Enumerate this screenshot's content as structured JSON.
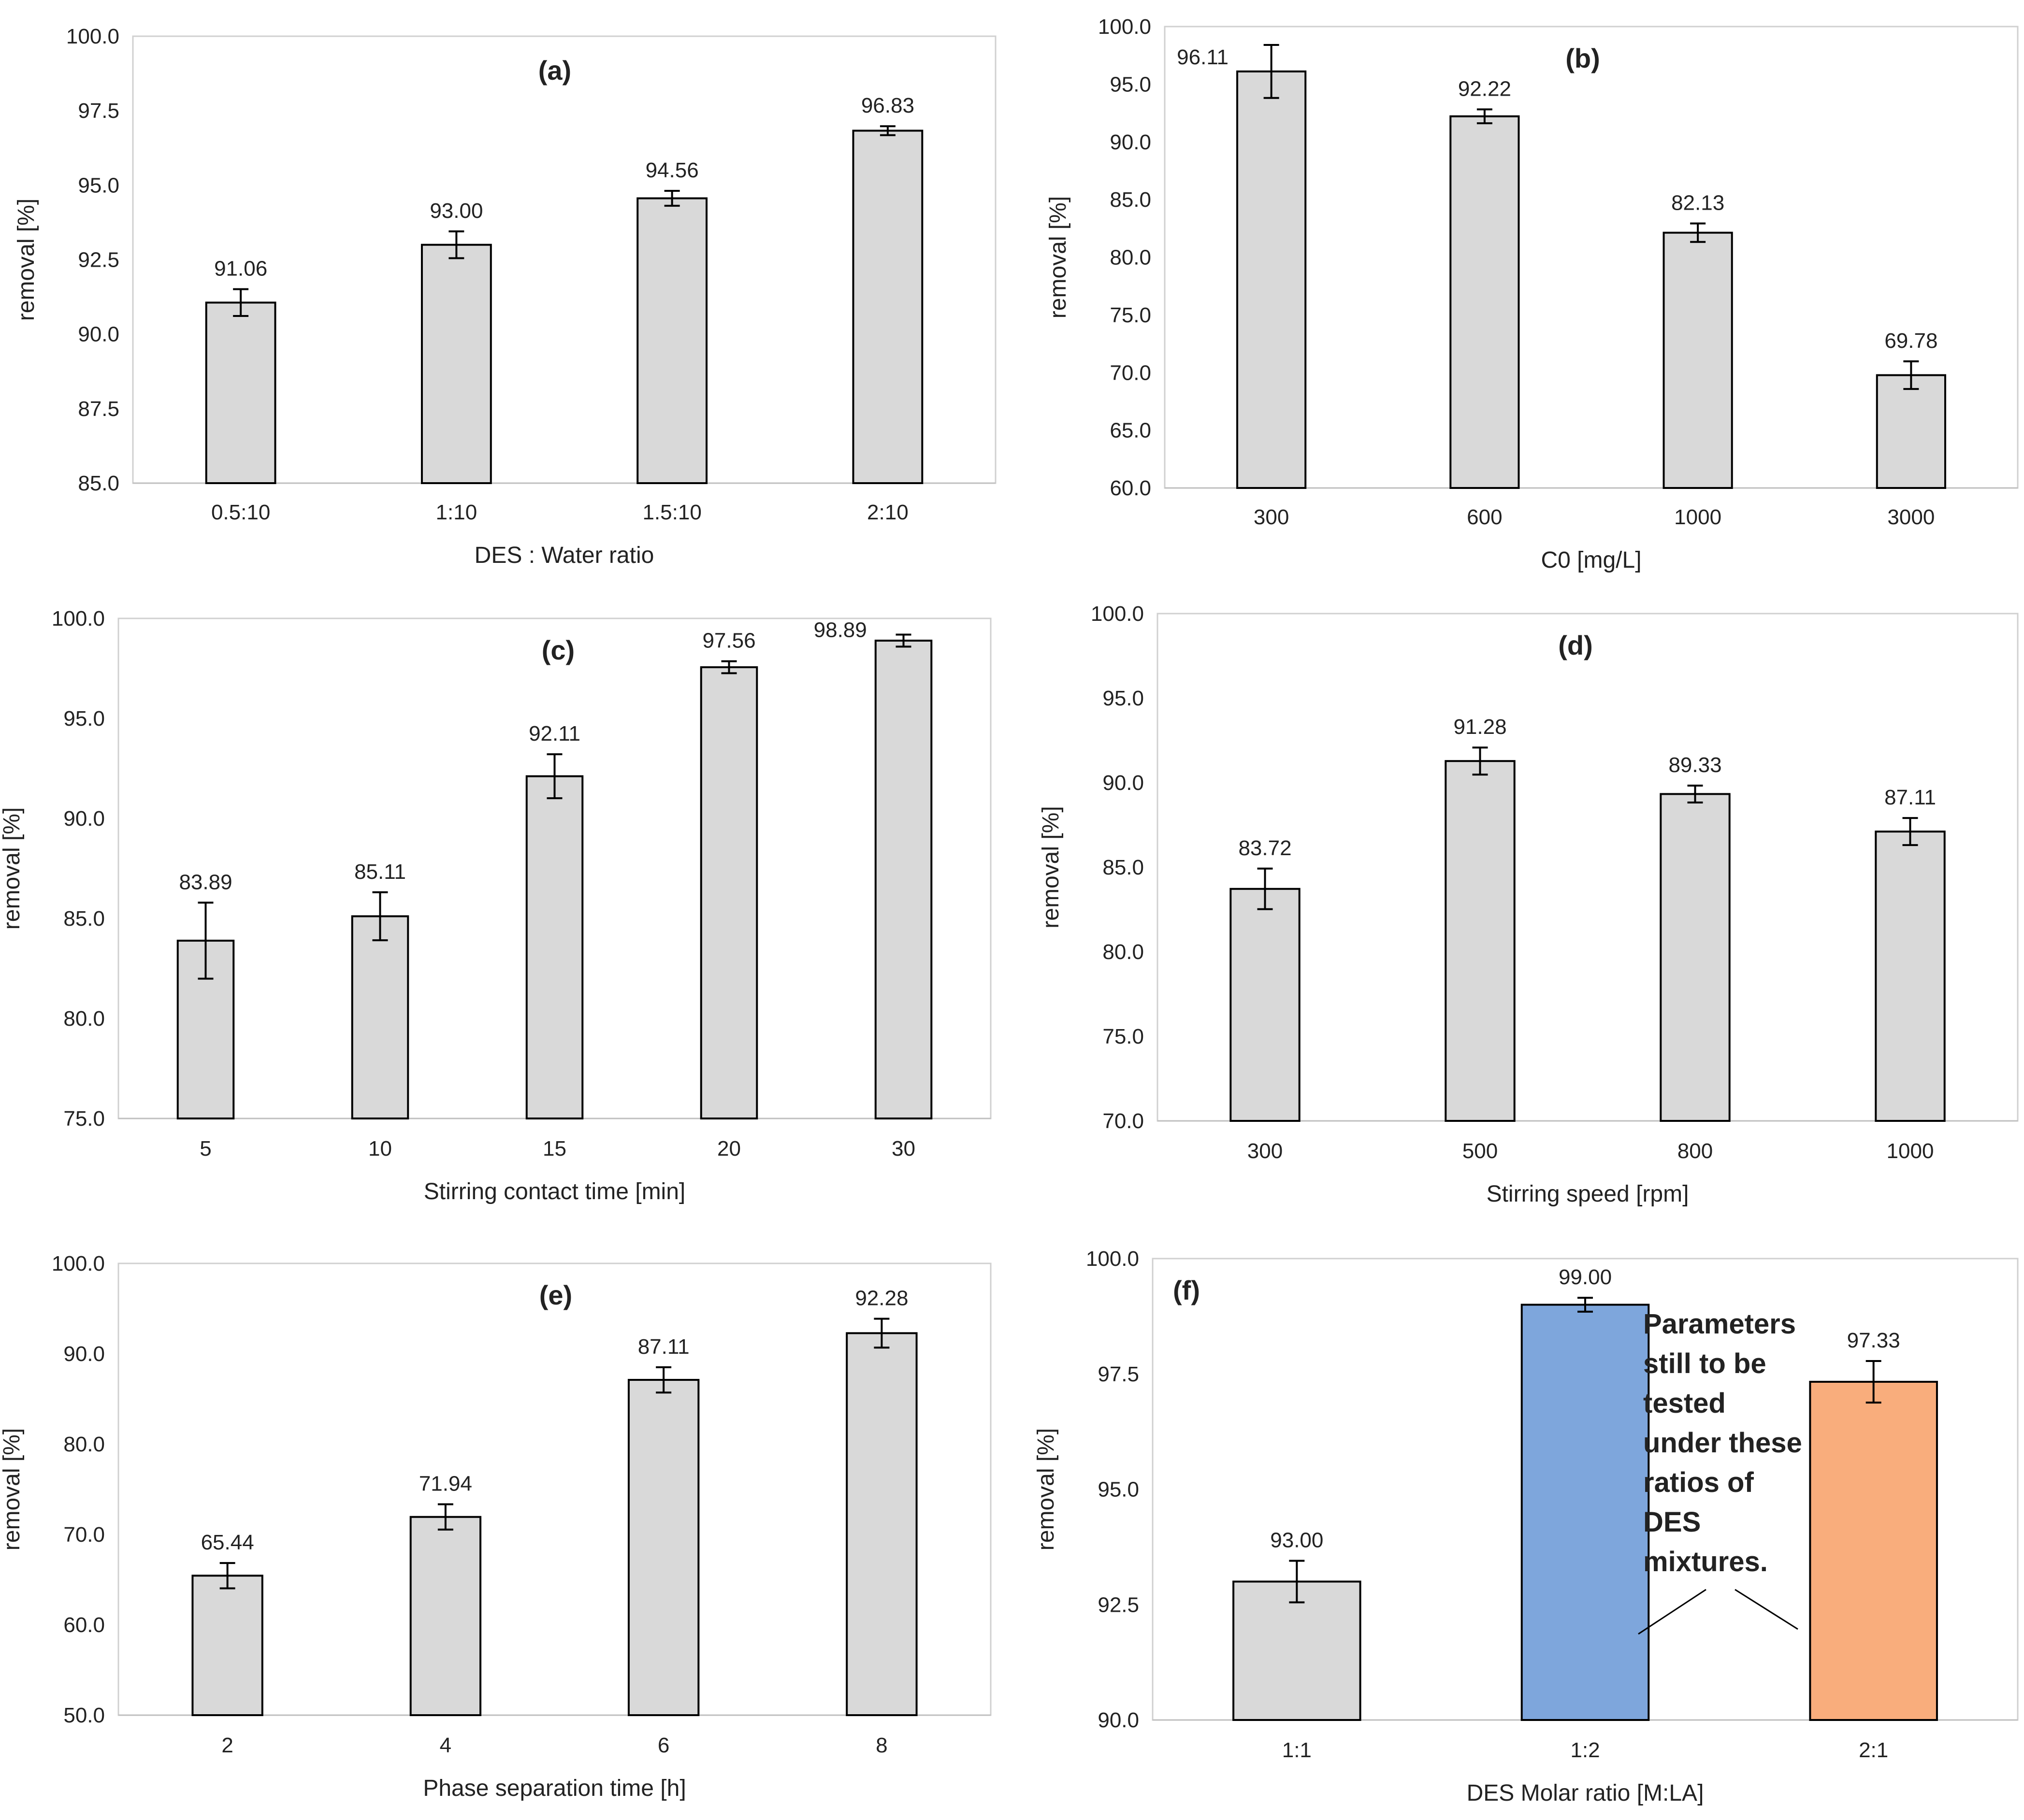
{
  "figure": {
    "panels": [
      {
        "id": "a",
        "annotation": null
      },
      {
        "id": "b",
        "annotation": null
      },
      {
        "id": "c",
        "annotation": null
      },
      {
        "id": "d",
        "annotation": null
      },
      {
        "id": "e",
        "annotation": null
      },
      {
        "id": "f",
        "annotation": [
          "Parameters",
          "still to be",
          "tested",
          "under these",
          "ratios of",
          "DES",
          "mixtures."
        ]
      }
    ]
  },
  "chart_data": [
    {
      "type": "bar",
      "title": "(a)",
      "xlabel": "DES : Water ratio",
      "ylabel": "removal [%]",
      "categories": [
        "0.5:10",
        "1:10",
        "1.5:10",
        "2:10"
      ],
      "values": [
        91.06,
        93.0,
        94.56,
        96.83
      ],
      "value_labels": [
        "91.06",
        "93.00",
        "94.56",
        "96.83"
      ],
      "errors": [
        0.45,
        0.45,
        0.25,
        0.15
      ],
      "ylim": [
        85.0,
        100.0
      ],
      "yticks": [
        "85.0",
        "87.5",
        "90.0",
        "92.5",
        "95.0",
        "97.5",
        "100.0"
      ],
      "bar_colors": [
        "#d9d9d9",
        "#d9d9d9",
        "#d9d9d9",
        "#d9d9d9"
      ]
    },
    {
      "type": "bar",
      "title": "(b)",
      "xlabel": "C0 [mg/L]",
      "ylabel": "removal [%]",
      "categories": [
        "300",
        "600",
        "1000",
        "3000"
      ],
      "values": [
        96.11,
        92.22,
        82.13,
        69.78
      ],
      "value_labels": [
        "96.11",
        "92.22",
        "82.13",
        "69.78"
      ],
      "errors": [
        2.3,
        0.6,
        0.8,
        1.2
      ],
      "ylim": [
        60.0,
        100.0
      ],
      "yticks": [
        "60.0",
        "65.0",
        "70.0",
        "75.0",
        "80.0",
        "85.0",
        "90.0",
        "95.0",
        "100.0"
      ],
      "bar_colors": [
        "#d9d9d9",
        "#d9d9d9",
        "#d9d9d9",
        "#d9d9d9"
      ]
    },
    {
      "type": "bar",
      "title": "(c)",
      "xlabel": "Stirring contact time [min]",
      "ylabel": "removal [%]",
      "categories": [
        "5",
        "10",
        "15",
        "20",
        "30"
      ],
      "values": [
        83.89,
        85.11,
        92.11,
        97.56,
        98.89
      ],
      "value_labels": [
        "83.89",
        "85.11",
        "92.11",
        "97.56",
        "98.89"
      ],
      "errors": [
        1.9,
        1.2,
        1.1,
        0.3,
        0.3
      ],
      "ylim": [
        75.0,
        100.0
      ],
      "yticks": [
        "75.0",
        "80.0",
        "85.0",
        "90.0",
        "95.0",
        "100.0"
      ],
      "bar_colors": [
        "#d9d9d9",
        "#d9d9d9",
        "#d9d9d9",
        "#d9d9d9",
        "#d9d9d9"
      ]
    },
    {
      "type": "bar",
      "title": "(d)",
      "xlabel": "Stirring speed [rpm]",
      "ylabel": "removal [%]",
      "categories": [
        "300",
        "500",
        "800",
        "1000"
      ],
      "values": [
        83.72,
        91.28,
        89.33,
        87.11
      ],
      "value_labels": [
        "83.72",
        "91.28",
        "89.33",
        "87.11"
      ],
      "errors": [
        1.2,
        0.8,
        0.5,
        0.8
      ],
      "ylim": [
        70.0,
        100.0
      ],
      "yticks": [
        "70.0",
        "75.0",
        "80.0",
        "85.0",
        "90.0",
        "95.0",
        "100.0"
      ],
      "bar_colors": [
        "#d9d9d9",
        "#d9d9d9",
        "#d9d9d9",
        "#d9d9d9"
      ]
    },
    {
      "type": "bar",
      "title": "(e)",
      "xlabel": "Phase separation time [h]",
      "ylabel": "removal [%]",
      "categories": [
        "2",
        "4",
        "6",
        "8"
      ],
      "values": [
        65.44,
        71.94,
        87.11,
        92.28
      ],
      "value_labels": [
        "65.44",
        "71.94",
        "87.11",
        "92.28"
      ],
      "errors": [
        1.4,
        1.4,
        1.4,
        1.6
      ],
      "ylim": [
        50.0,
        100.0
      ],
      "yticks": [
        "50.0",
        "60.0",
        "70.0",
        "80.0",
        "90.0",
        "100.0"
      ],
      "bar_colors": [
        "#d9d9d9",
        "#d9d9d9",
        "#d9d9d9",
        "#d9d9d9"
      ]
    },
    {
      "type": "bar",
      "title": "(f)",
      "xlabel": "DES Molar ratio [M:LA]",
      "ylabel": "removal [%]",
      "categories": [
        "1:1",
        "1:2",
        "2:1"
      ],
      "values": [
        93.0,
        99.0,
        97.33
      ],
      "value_labels": [
        "93.00",
        "99.00",
        "97.33"
      ],
      "errors": [
        0.45,
        0.15,
        0.45
      ],
      "ylim": [
        90.0,
        100.0
      ],
      "yticks": [
        "90.0",
        "92.5",
        "95.0",
        "97.5",
        "100.0"
      ],
      "bar_colors": [
        "#d9d9d9",
        "#7ea6dc",
        "#f9ad7c"
      ]
    }
  ]
}
